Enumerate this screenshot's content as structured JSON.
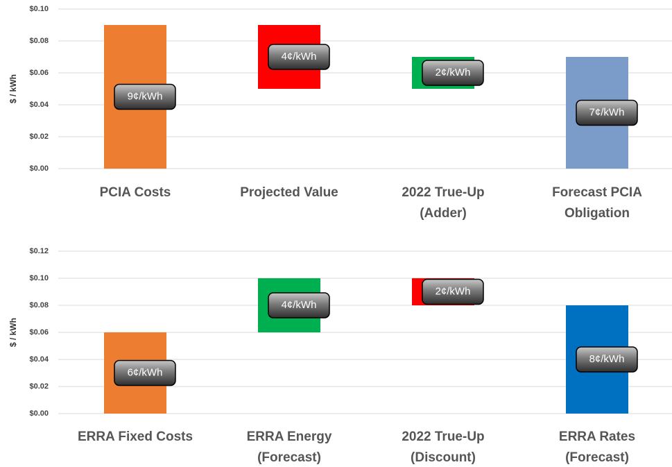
{
  "chart_data": [
    {
      "type": "waterfall",
      "y_label": "$ / kWh",
      "categories": [
        [
          "PCIA Costs"
        ],
        [
          "Projected Value"
        ],
        [
          "2022 True-Up",
          "(Adder)"
        ],
        [
          "Forecast PCIA",
          "Obligation"
        ]
      ],
      "values": [
        0.09,
        0.04,
        0.02,
        0.07
      ],
      "steps": [
        "start",
        "down",
        "up",
        "total"
      ],
      "value_labels": [
        "9¢/kWh",
        "4¢/kWh",
        "2¢/kWh",
        "7¢/kWh"
      ],
      "colors": [
        "#ed7d31",
        "#ff0000",
        "#00b050",
        "#7b9bc8"
      ],
      "ylim": [
        0,
        0.1
      ],
      "yticks": [
        {
          "value": 0,
          "label": "$0.00"
        },
        {
          "value": 0.02,
          "label": "$0.02"
        },
        {
          "value": 0.04,
          "label": "$0.04"
        },
        {
          "value": 0.06,
          "label": "$0.06"
        },
        {
          "value": 0.08,
          "label": "$0.08"
        },
        {
          "value": 0.1,
          "label": "$0.10"
        }
      ],
      "grid": true
    },
    {
      "type": "waterfall",
      "y_label": "$ / kWh",
      "categories": [
        [
          "ERRA Fixed Costs"
        ],
        [
          "ERRA Energy",
          "(Forecast)"
        ],
        [
          "2022 True-Up",
          "(Discount)"
        ],
        [
          "ERRA Rates",
          "(Forecast)"
        ]
      ],
      "values": [
        0.06,
        0.04,
        0.02,
        0.08
      ],
      "steps": [
        "start",
        "up",
        "down",
        "total"
      ],
      "value_labels": [
        "6¢/kWh",
        "4¢/kWh",
        "2¢/kWh",
        "8¢/kWh"
      ],
      "colors": [
        "#ed7d31",
        "#00b050",
        "#ff0000",
        "#0070c0"
      ],
      "ylim": [
        0,
        0.12
      ],
      "yticks": [
        {
          "value": 0,
          "label": "$0.00"
        },
        {
          "value": 0.02,
          "label": "$0.02"
        },
        {
          "value": 0.04,
          "label": "$0.04"
        },
        {
          "value": 0.06,
          "label": "$0.06"
        },
        {
          "value": 0.08,
          "label": "$0.08"
        },
        {
          "value": 0.1,
          "label": "$0.10"
        },
        {
          "value": 0.12,
          "label": "$0.12"
        }
      ],
      "grid": true
    }
  ]
}
